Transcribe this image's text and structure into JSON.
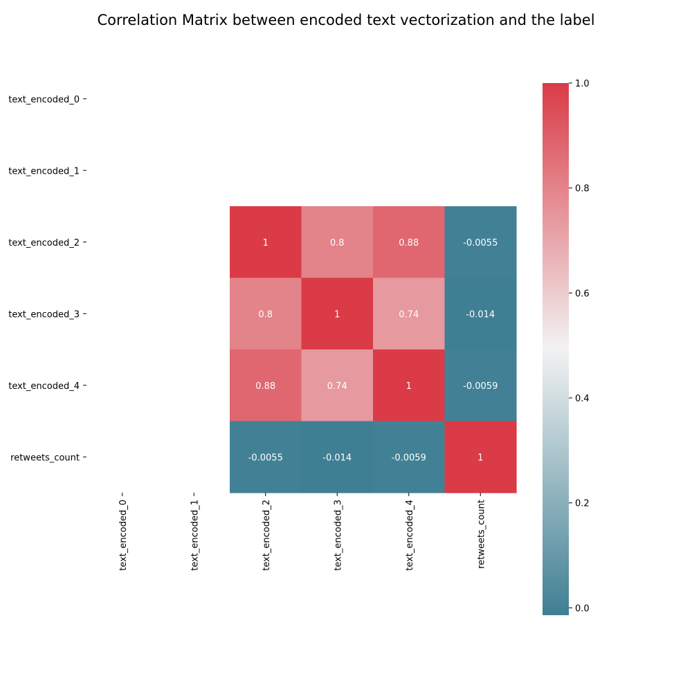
{
  "chart_data": {
    "type": "heatmap",
    "title": "Correlation Matrix between encoded text vectorization and the label",
    "row_labels": [
      "text_encoded_0",
      "text_encoded_1",
      "text_encoded_2",
      "text_encoded_3",
      "text_encoded_4",
      "retweets_count"
    ],
    "col_labels": [
      "text_encoded_0",
      "text_encoded_1",
      "text_encoded_2",
      "text_encoded_3",
      "text_encoded_4",
      "retweets_count"
    ],
    "values": [
      [
        null,
        null,
        null,
        null,
        null,
        null
      ],
      [
        null,
        null,
        null,
        null,
        null,
        null
      ],
      [
        null,
        null,
        1,
        0.8,
        0.88,
        -0.0055
      ],
      [
        null,
        null,
        0.8,
        1,
        0.74,
        -0.014
      ],
      [
        null,
        null,
        0.88,
        0.74,
        1,
        -0.0059
      ],
      [
        null,
        null,
        -0.0055,
        -0.014,
        -0.0059,
        1
      ]
    ],
    "annotations": [
      [
        null,
        null,
        null,
        null,
        null,
        null
      ],
      [
        null,
        null,
        null,
        null,
        null,
        null
      ],
      [
        null,
        null,
        "1",
        "0.8",
        "0.88",
        "-0.0055"
      ],
      [
        null,
        null,
        "0.8",
        "1",
        "0.74",
        "-0.014"
      ],
      [
        null,
        null,
        "0.88",
        "0.74",
        "1",
        "-0.0059"
      ],
      [
        null,
        null,
        "-0.0055",
        "-0.014",
        "-0.0059",
        "1"
      ]
    ],
    "colorbar": {
      "range": [
        -0.014,
        1.0
      ],
      "ticks": [
        0.0,
        0.2,
        0.4,
        0.6,
        0.8,
        1.0
      ],
      "tick_labels": [
        "0.0",
        "0.2",
        "0.4",
        "0.6",
        "0.8",
        "1.0"
      ],
      "colors": {
        "low": "#3f7f93",
        "mid": "#f2f2f2",
        "high": "#da3b46"
      }
    },
    "annotation_color": "#ffffff",
    "grid": false,
    "legend": "colorbar-right"
  }
}
